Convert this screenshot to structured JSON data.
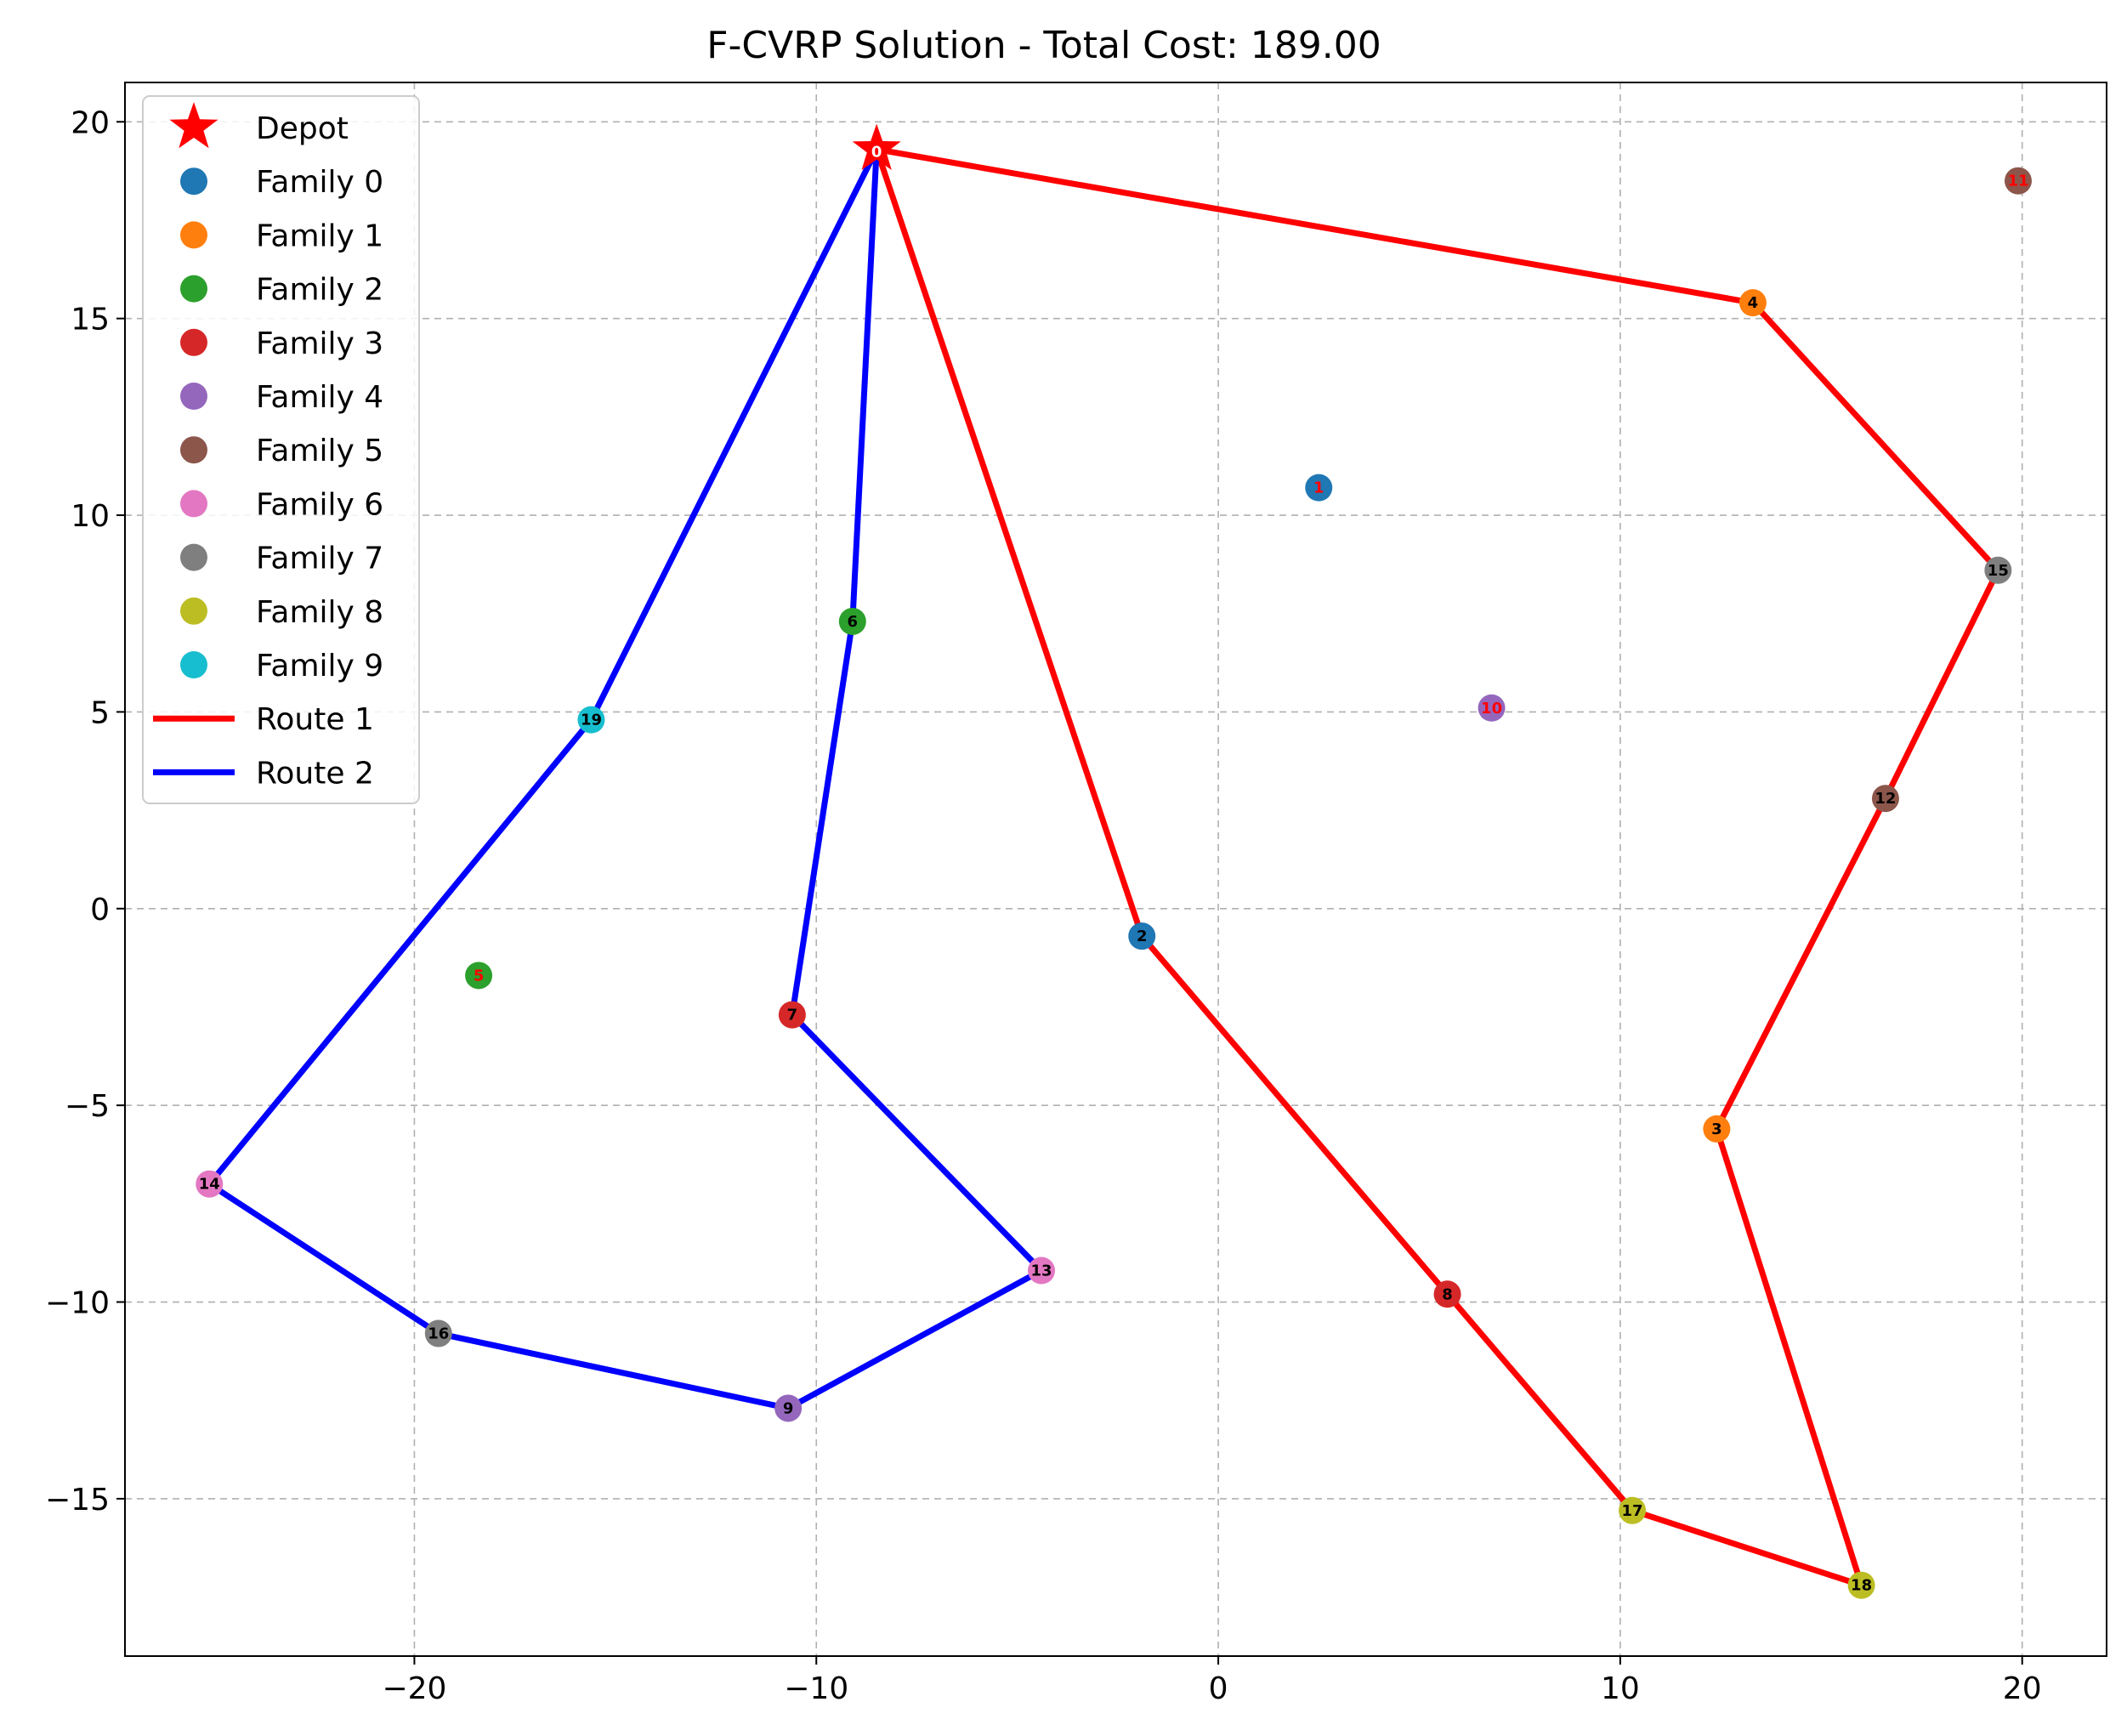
{
  "chart_data": {
    "type": "scatter",
    "title": "F-CVRP Solution - Total Cost: 189.00",
    "xlabel": "",
    "ylabel": "",
    "xlim": [
      -27.2,
      22.1
    ],
    "ylim": [
      -19.0,
      21.0
    ],
    "xticks": [
      -20,
      -10,
      0,
      10,
      20
    ],
    "yticks": [
      -15,
      -10,
      -5,
      0,
      5,
      10,
      15,
      20
    ],
    "xtick_labels": [
      "−20",
      "−10",
      "0",
      "10",
      "20"
    ],
    "ytick_labels": [
      "−15",
      "−10",
      "−5",
      "0",
      "5",
      "10",
      "15",
      "20"
    ],
    "grid": true,
    "legend_position": "top-left",
    "depot": {
      "name": "Depot",
      "id": "0",
      "x": -8.5,
      "y": 19.3,
      "color": "#ff0000"
    },
    "families": [
      {
        "name": "Family 0",
        "color": "#1f77b4"
      },
      {
        "name": "Family 1",
        "color": "#ff7f0e"
      },
      {
        "name": "Family 2",
        "color": "#2ca02c"
      },
      {
        "name": "Family 3",
        "color": "#d62728"
      },
      {
        "name": "Family 4",
        "color": "#9467bd"
      },
      {
        "name": "Family 5",
        "color": "#8c564b"
      },
      {
        "name": "Family 6",
        "color": "#e377c2"
      },
      {
        "name": "Family 7",
        "color": "#7f7f7f"
      },
      {
        "name": "Family 8",
        "color": "#bcbd22"
      },
      {
        "name": "Family 9",
        "color": "#17becf"
      }
    ],
    "nodes": [
      {
        "id": "1",
        "x": 2.5,
        "y": 10.7,
        "family": 0,
        "visited": false
      },
      {
        "id": "2",
        "x": -1.9,
        "y": -0.7,
        "family": 0,
        "visited": true
      },
      {
        "id": "3",
        "x": 12.4,
        "y": -5.6,
        "family": 1,
        "visited": true
      },
      {
        "id": "4",
        "x": 13.3,
        "y": 15.4,
        "family": 1,
        "visited": true
      },
      {
        "id": "5",
        "x": -18.4,
        "y": -1.7,
        "family": 2,
        "visited": false
      },
      {
        "id": "6",
        "x": -9.1,
        "y": 7.3,
        "family": 2,
        "visited": true
      },
      {
        "id": "7",
        "x": -10.6,
        "y": -2.7,
        "family": 3,
        "visited": true
      },
      {
        "id": "8",
        "x": 5.7,
        "y": -9.8,
        "family": 3,
        "visited": true
      },
      {
        "id": "9",
        "x": -10.7,
        "y": -12.7,
        "family": 4,
        "visited": true
      },
      {
        "id": "10",
        "x": 6.8,
        "y": 5.1,
        "family": 4,
        "visited": false
      },
      {
        "id": "11",
        "x": 19.9,
        "y": 18.5,
        "family": 5,
        "visited": false
      },
      {
        "id": "12",
        "x": 16.6,
        "y": 2.8,
        "family": 5,
        "visited": true
      },
      {
        "id": "13",
        "x": -4.4,
        "y": -9.2,
        "family": 6,
        "visited": true
      },
      {
        "id": "14",
        "x": -25.1,
        "y": -7.0,
        "family": 6,
        "visited": true
      },
      {
        "id": "15",
        "x": 19.4,
        "y": 8.6,
        "family": 7,
        "visited": true
      },
      {
        "id": "16",
        "x": -19.4,
        "y": -10.8,
        "family": 7,
        "visited": true
      },
      {
        "id": "17",
        "x": 10.3,
        "y": -15.3,
        "family": 8,
        "visited": true
      },
      {
        "id": "18",
        "x": 16.0,
        "y": -17.2,
        "family": 8,
        "visited": true
      },
      {
        "id": "19",
        "x": -15.6,
        "y": 4.8,
        "family": 9,
        "visited": true
      }
    ],
    "routes": [
      {
        "name": "Route 1",
        "color": "#ff0000",
        "path": [
          "0",
          "4",
          "15",
          "12",
          "3",
          "18",
          "17",
          "8",
          "2",
          "0"
        ]
      },
      {
        "name": "Route 2",
        "color": "#0000ff",
        "path": [
          "0",
          "6",
          "7",
          "13",
          "9",
          "16",
          "14",
          "19",
          "0"
        ]
      }
    ],
    "label_colors": {
      "visited": "#000000",
      "unvisited": "#ff0000"
    }
  }
}
